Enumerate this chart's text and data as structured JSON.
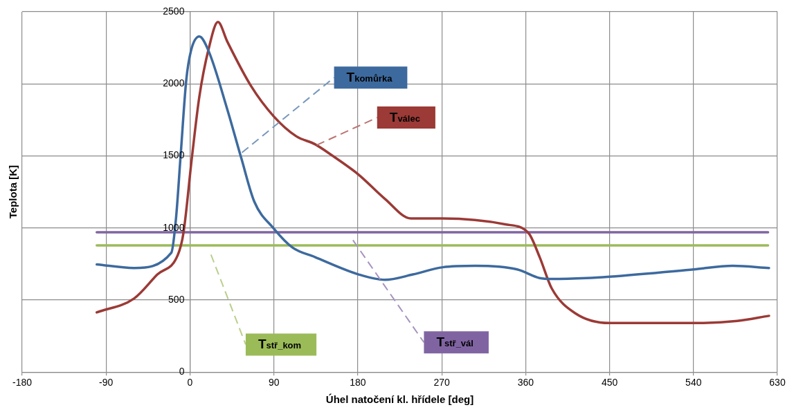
{
  "chart_data": {
    "type": "line",
    "xlabel": "Úhel natočení kl. hřídele [deg]",
    "ylabel": "Teplota [K]",
    "xlim": [
      -180,
      630
    ],
    "xticks": [
      -180,
      -90,
      0,
      90,
      180,
      270,
      360,
      450,
      540,
      630
    ],
    "ylim": [
      0,
      2500
    ],
    "yticks": [
      0,
      500,
      1000,
      1500,
      2000,
      2500
    ],
    "grid": true,
    "legend": false,
    "marker": "none",
    "line_style": "solid",
    "series": [
      {
        "name": "T$_{komůrka}$",
        "color": "#3d6a9e",
        "x": [
          -100,
          -60,
          -20,
          -15,
          -10,
          -4,
          1,
          10,
          20,
          40,
          55,
          69,
          90,
          110,
          134,
          181,
          209,
          239,
          271,
          306,
          351,
          375,
          388,
          425,
          450,
          540,
          582,
          621
        ],
        "values": [
          747,
          722,
          828,
          1066,
          1505,
          2025,
          2227,
          2328,
          2227,
          1823,
          1485,
          1182,
          995,
          864,
          798,
          677,
          640,
          677,
          727,
          737,
          712,
          652,
          646,
          652,
          662,
          712,
          737,
          722
        ]
      },
      {
        "name": "T$_{válec}$",
        "color": "#9b3a36",
        "x": [
          -100,
          -60,
          -35,
          -13,
          -7,
          2,
          10,
          20,
          30,
          40,
          65,
          90,
          114,
          134,
          152,
          181,
          209,
          237,
          271,
          338,
          363,
          375,
          388,
          413,
          450,
          540,
          587,
          621
        ],
        "values": [
          414,
          510,
          677,
          813,
          965,
          1485,
          1909,
          2242,
          2429,
          2293,
          1990,
          1773,
          1636,
          1581,
          1505,
          1369,
          1202,
          1066,
          1066,
          1025,
          965,
          798,
          580,
          409,
          340,
          340,
          355,
          390
        ]
      },
      {
        "name": "T$_{stř_kom}$",
        "color": "#9bbb59",
        "x": [
          -100,
          620
        ],
        "values": [
          879,
          879
        ]
      },
      {
        "name": "T$_{stř_vál}$",
        "color": "#8064a2",
        "x": [
          -100,
          620
        ],
        "values": [
          970,
          970
        ]
      }
    ]
  }
}
